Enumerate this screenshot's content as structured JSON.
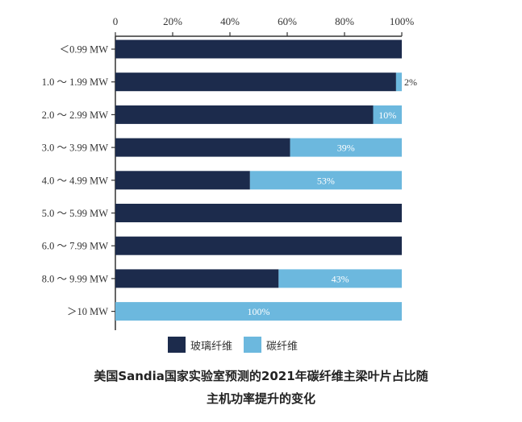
{
  "caption": {
    "line1": "美国Sandia国家实验室预测的2021年碳纤维主梁叶片占比随",
    "line2": "主机功率提升的变化"
  },
  "colors": {
    "glass": "#1c2b4c",
    "carbon": "#6cb8de",
    "axis": "#333333"
  },
  "chart_data": {
    "type": "bar",
    "orientation": "horizontal",
    "stacked": true,
    "title": "美国Sandia国家实验室预测的2021年碳纤维主梁叶片占比随主机功率提升的变化",
    "xlim": [
      0,
      100
    ],
    "xticks": [
      "0",
      "20%",
      "40%",
      "60%",
      "80%",
      "100%"
    ],
    "xtick_values": [
      0,
      20,
      40,
      60,
      80,
      100
    ],
    "xaxis_position": "top",
    "grid": false,
    "legend_position": "bottom",
    "categories": [
      "＜0.99 MW",
      "1.0 ～ 1.99 MW",
      "2.0 ～ 2.99 MW",
      "3.0 ～ 3.99 MW",
      "4.0 ～ 4.99 MW",
      "5.0 ～ 5.99 MW",
      "6.0 ～ 7.99 MW",
      "8.0 ～ 9.99 MW",
      "＞10 MW"
    ],
    "series": [
      {
        "name": "玻璃纤维",
        "color": "#1c2b4c",
        "values": [
          100,
          98,
          90,
          61,
          47,
          100,
          100,
          57,
          0
        ]
      },
      {
        "name": "碳纤维",
        "color": "#6cb8de",
        "values": [
          0,
          2,
          10,
          39,
          53,
          0,
          0,
          43,
          100
        ]
      }
    ],
    "data_labels": [
      "",
      "2%",
      "10%",
      "39%",
      "53%",
      "",
      "",
      "43%",
      "100%"
    ]
  }
}
